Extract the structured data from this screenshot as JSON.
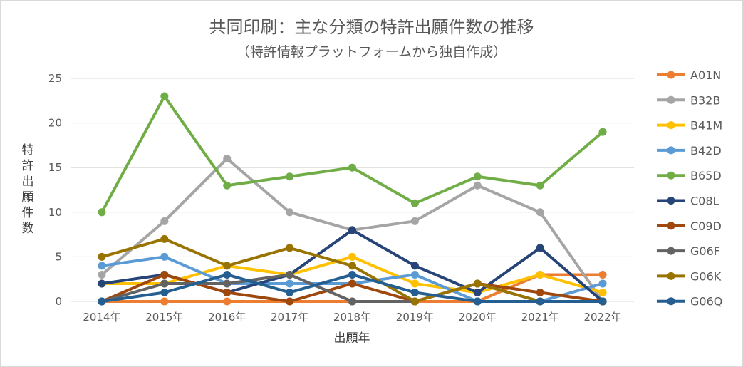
{
  "chart_data": {
    "type": "line",
    "title": "共同印刷：主な分類の特許出願件数の推移",
    "subtitle": "（特許情報プラットフォームから独自作成）",
    "xlabel": "出願年",
    "ylabel": "特許出願件数",
    "ylim": [
      0,
      25
    ],
    "yticks": [
      0,
      5,
      10,
      15,
      20,
      25
    ],
    "categories": [
      "2014年",
      "2015年",
      "2016年",
      "2017年",
      "2018年",
      "2019年",
      "2020年",
      "2021年",
      "2022年"
    ],
    "legend_position": "right",
    "series": [
      {
        "name": "A01N",
        "color": "#ed7d31",
        "values": [
          0,
          0,
          0,
          0,
          0,
          0,
          0,
          3,
          3
        ]
      },
      {
        "name": "B32B",
        "color": "#a5a5a5",
        "values": [
          3,
          9,
          16,
          10,
          8,
          9,
          13,
          10,
          0
        ]
      },
      {
        "name": "B41M",
        "color": "#ffc000",
        "values": [
          2,
          2,
          4,
          3,
          5,
          2,
          1,
          3,
          1
        ]
      },
      {
        "name": "B42D",
        "color": "#5b9bd5",
        "values": [
          4,
          5,
          2,
          2,
          2,
          3,
          0,
          0,
          2
        ]
      },
      {
        "name": "B65D",
        "color": "#70ad47",
        "values": [
          10,
          23,
          13,
          14,
          15,
          11,
          14,
          13,
          19
        ]
      },
      {
        "name": "C08L",
        "color": "#264478",
        "values": [
          2,
          3,
          1,
          3,
          8,
          4,
          1,
          6,
          0
        ]
      },
      {
        "name": "C09D",
        "color": "#9e480e",
        "values": [
          0,
          3,
          1,
          0,
          2,
          0,
          2,
          1,
          0
        ]
      },
      {
        "name": "G06F",
        "color": "#636363",
        "values": [
          0,
          2,
          2,
          3,
          0,
          0,
          2,
          0,
          0
        ]
      },
      {
        "name": "G06K",
        "color": "#997300",
        "values": [
          5,
          7,
          4,
          6,
          4,
          0,
          2,
          0,
          0
        ]
      },
      {
        "name": "G06Q",
        "color": "#255e91",
        "values": [
          0,
          1,
          3,
          1,
          3,
          1,
          0,
          0,
          0
        ]
      }
    ]
  }
}
